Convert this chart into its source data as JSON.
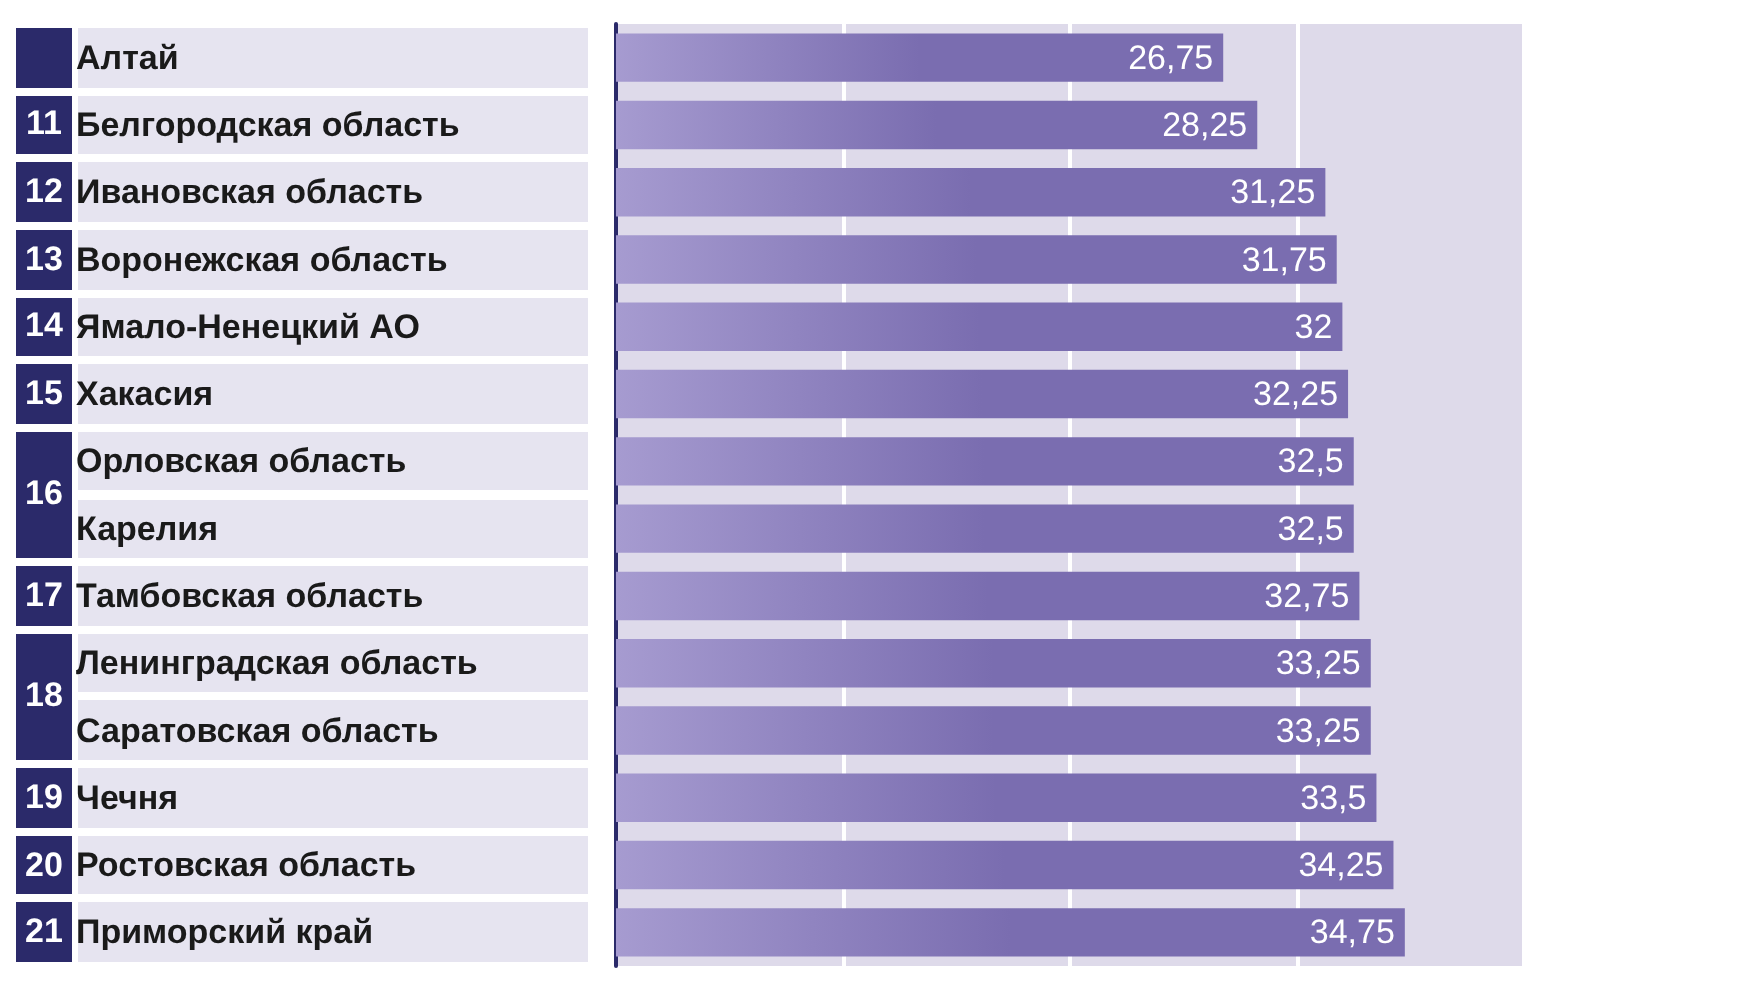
{
  "chart_data": {
    "type": "bar",
    "orientation": "horizontal",
    "categories": [
      "Алтай",
      "Белгородская область",
      "Ивановская область",
      "Воронежская область",
      "Ямало-Ненецкий АО",
      "Хакасия",
      "Орловская область",
      "Карелия",
      "Тамбовская область",
      "Ленинградская область",
      "Саратовская область",
      "Чечня",
      "Ростовская область",
      "Приморский край"
    ],
    "values": [
      26.75,
      28.25,
      31.25,
      31.75,
      32,
      32.25,
      32.5,
      32.5,
      32.75,
      33.25,
      33.25,
      33.5,
      34.25,
      34.75
    ],
    "value_labels": [
      "26,75",
      "28,25",
      "31,25",
      "31,75",
      "32",
      "32,25",
      "32,5",
      "32,5",
      "32,75",
      "33,25",
      "33,25",
      "33,5",
      "34,25",
      "34,75"
    ],
    "annotations": [
      "11",
      "12",
      "13",
      "14",
      "15",
      "16",
      "17",
      "18",
      "19",
      "20",
      "21"
    ],
    "color": "#7a6db0",
    "xlim": [
      0,
      40
    ],
    "xticks": [
      {
        "value": 0,
        "label": null
      },
      {
        "value": 10,
        "label": null
      },
      {
        "value": 20,
        "label": null
      },
      {
        "value": 30,
        "label": null
      },
      {
        "value": 40,
        "label": null
      }
    ],
    "grid": "x"
  }
}
